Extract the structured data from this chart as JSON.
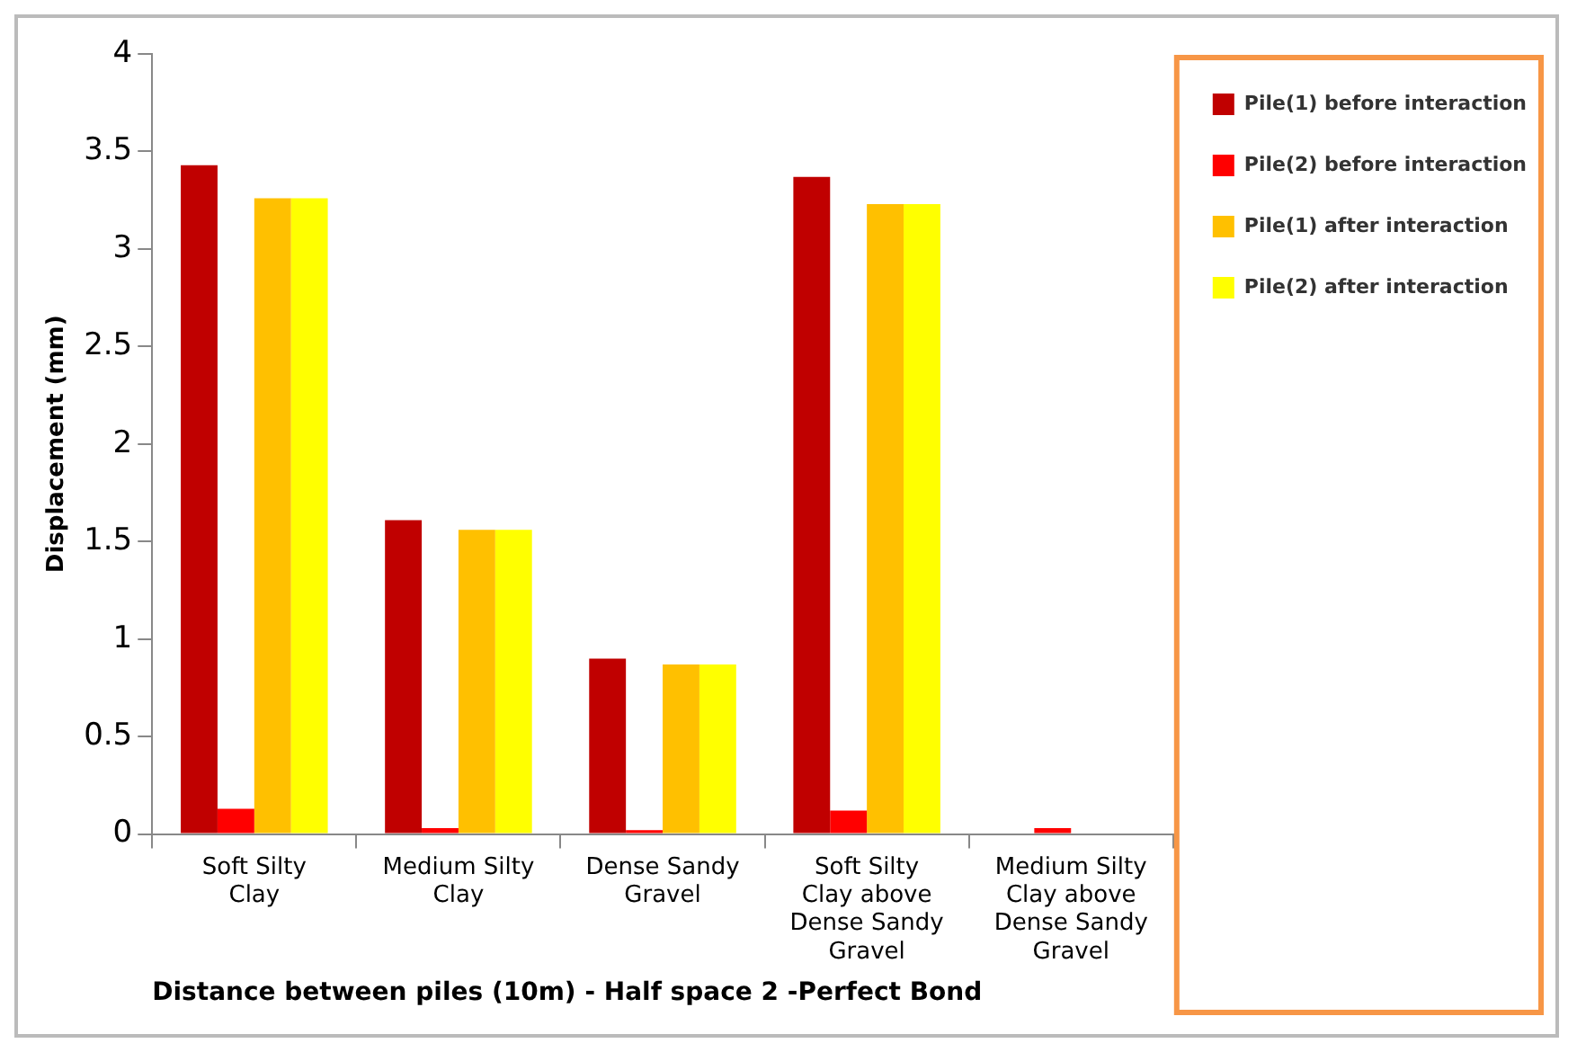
{
  "chart_data": {
    "type": "bar",
    "xlabel": "Distance between piles (10m) - Half space 2 -Perfect Bond",
    "ylabel": "Displacement (mm)",
    "categories": [
      "Soft Silty Clay",
      "Medium Silty Clay",
      "Dense Sandy Gravel",
      "Soft Silty Clay above Dense Sandy Gravel",
      "Medium Silty Clay above Dense Sandy Gravel"
    ],
    "series": [
      {
        "name": "Pile(1) before interaction",
        "color": "#c00000",
        "values": [
          3.43,
          1.61,
          0.9,
          3.37,
          null
        ]
      },
      {
        "name": "Pile(2) before interaction",
        "color": "#ff0000",
        "values": [
          0.13,
          0.03,
          0.02,
          0.12,
          0.03
        ]
      },
      {
        "name": "Pile(1) after interaction",
        "color": "#ffc000",
        "values": [
          3.26,
          1.56,
          0.87,
          3.23,
          null
        ]
      },
      {
        "name": "Pile(2) after interaction",
        "color": "#ffff00",
        "values": [
          3.26,
          1.56,
          0.87,
          3.23,
          null
        ]
      }
    ],
    "ylim": [
      0,
      4
    ],
    "yticks": [
      0,
      0.5,
      1,
      1.5,
      2,
      2.5,
      3,
      3.5,
      4
    ],
    "grid": false,
    "legend": "top right"
  }
}
